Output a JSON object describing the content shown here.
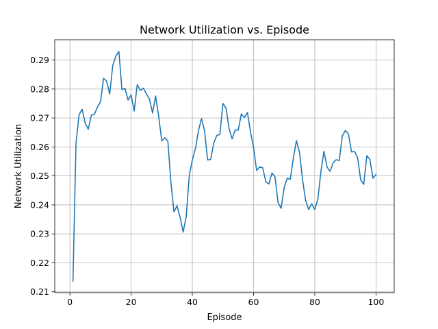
{
  "chart_data": {
    "type": "line",
    "title": "Network Utilization vs. Episode",
    "xlabel": "Episode",
    "ylabel": "Network Utilization",
    "xlim": [
      -4.95,
      105.95
    ],
    "ylim": [
      0.2097,
      0.297
    ],
    "xticks": [
      0,
      20,
      40,
      60,
      80,
      100
    ],
    "yticks": [
      0.21,
      0.22,
      0.23,
      0.24,
      0.25,
      0.26,
      0.27,
      0.28,
      0.29
    ],
    "grid": true,
    "line_color": "#1f77b4",
    "series": [
      {
        "x": [
          1,
          2,
          3,
          4,
          5,
          6,
          7,
          8,
          9,
          10,
          11,
          12,
          13,
          14,
          15,
          16,
          17,
          18,
          19,
          20,
          21,
          22,
          23,
          24,
          25,
          26,
          27,
          28,
          29,
          30,
          31,
          32,
          33,
          34,
          35,
          36,
          37,
          38,
          39,
          40,
          41,
          42,
          43,
          44,
          45,
          46,
          47,
          48,
          49,
          50,
          51,
          52,
          53,
          54,
          55,
          56,
          57,
          58,
          59,
          60,
          61,
          62,
          63,
          64,
          65,
          66,
          67,
          68,
          69,
          70,
          71,
          72,
          73,
          74,
          75,
          76,
          77,
          78,
          79,
          80,
          81,
          82,
          83,
          84,
          85,
          86,
          87,
          88,
          89,
          90,
          91,
          92,
          93,
          94,
          95,
          96,
          97,
          98,
          99,
          100
        ],
        "values": [
          0.2137,
          0.2612,
          0.2712,
          0.273,
          0.2682,
          0.2661,
          0.271,
          0.2712,
          0.2738,
          0.2756,
          0.2837,
          0.2827,
          0.2782,
          0.2881,
          0.2913,
          0.293,
          0.2798,
          0.2802,
          0.2762,
          0.278,
          0.2724,
          0.2815,
          0.2795,
          0.2803,
          0.2783,
          0.2765,
          0.2717,
          0.2776,
          0.2706,
          0.2621,
          0.2632,
          0.262,
          0.2477,
          0.2376,
          0.2397,
          0.2357,
          0.2306,
          0.236,
          0.2502,
          0.2555,
          0.2594,
          0.2656,
          0.2698,
          0.2655,
          0.2555,
          0.2557,
          0.2613,
          0.264,
          0.2643,
          0.275,
          0.2734,
          0.2663,
          0.2628,
          0.2659,
          0.2658,
          0.2714,
          0.2702,
          0.2719,
          0.2652,
          0.2598,
          0.2519,
          0.2531,
          0.2528,
          0.248,
          0.2472,
          0.251,
          0.2497,
          0.2408,
          0.2388,
          0.246,
          0.2492,
          0.2488,
          0.2561,
          0.2622,
          0.2582,
          0.2488,
          0.2416,
          0.2384,
          0.2404,
          0.2384,
          0.2419,
          0.2515,
          0.2585,
          0.2531,
          0.2516,
          0.2545,
          0.2556,
          0.2553,
          0.2638,
          0.2657,
          0.2645,
          0.2583,
          0.2584,
          0.2563,
          0.2486,
          0.2471,
          0.257,
          0.2557,
          0.2492,
          0.2505
        ]
      }
    ]
  }
}
